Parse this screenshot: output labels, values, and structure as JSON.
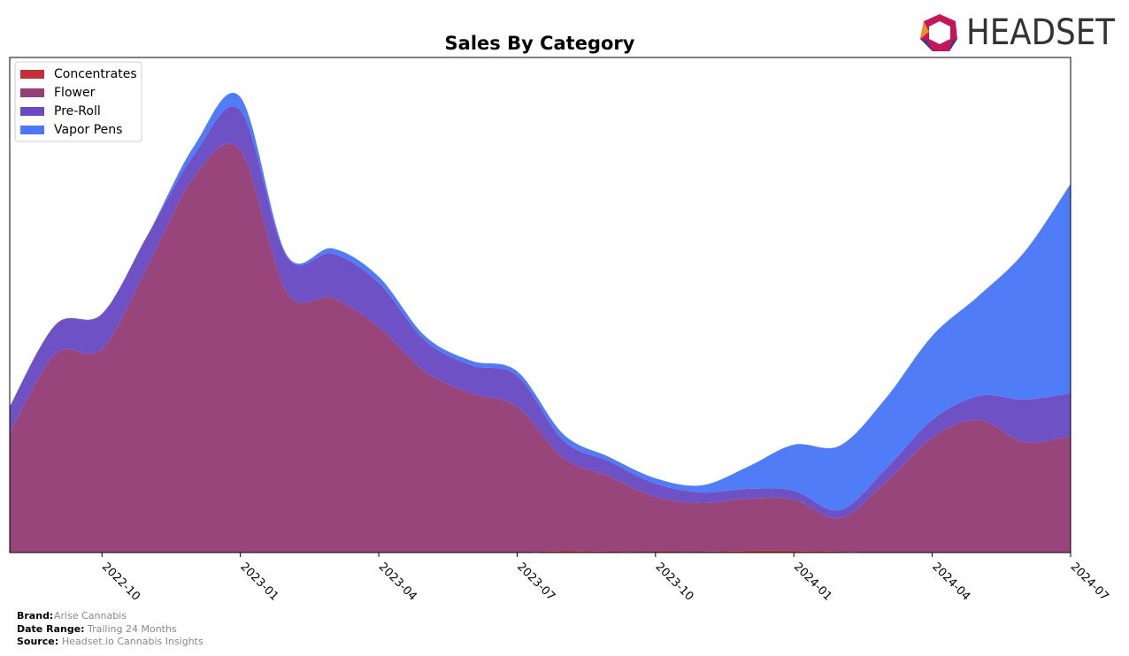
{
  "logo": "HEADSET",
  "chart_data": {
    "type": "stacked-area",
    "title": "Sales By Category",
    "x": [
      "2022-08",
      "2022-09",
      "2022-10",
      "2022-11",
      "2022-12",
      "2023-01",
      "2023-02",
      "2023-03",
      "2023-04",
      "2023-05",
      "2023-06",
      "2023-07",
      "2023-08",
      "2023-09",
      "2023-10",
      "2023-11",
      "2023-12",
      "2024-01",
      "2024-02",
      "2024-03",
      "2024-04",
      "2024-05",
      "2024-06",
      "2024-07"
    ],
    "xticks": [
      "2022-10",
      "2023-01",
      "2023-04",
      "2023-07",
      "2023-10",
      "2024-01",
      "2024-04",
      "2024-07"
    ],
    "legend": "upper left",
    "series": [
      {
        "name": "Concentrates",
        "color": "#c0303a",
        "values": [
          0,
          0,
          0,
          0,
          0,
          0,
          0,
          0,
          0,
          0,
          0,
          0,
          2,
          1,
          1,
          1,
          2,
          2,
          1,
          0,
          0,
          0,
          0,
          0
        ]
      },
      {
        "name": "Flower",
        "color": "#943f76",
        "values": [
          135,
          225,
          230,
          325,
          425,
          455,
          295,
          288,
          255,
          205,
          180,
          165,
          105,
          85,
          62,
          55,
          59,
          58,
          38,
          80,
          130,
          150,
          125,
          132
        ]
      },
      {
        "name": "Pre-Roll",
        "color": "#6a4bc4",
        "values": [
          30,
          33,
          40,
          35,
          25,
          45,
          40,
          50,
          50,
          35,
          32,
          35,
          20,
          17,
          15,
          12,
          11,
          10,
          9,
          15,
          20,
          27,
          48,
          48
        ]
      },
      {
        "name": "Vapor Pens",
        "color": "#4a78f8",
        "values": [
          0,
          0,
          0,
          0,
          10,
          15,
          2,
          6,
          7,
          5,
          5,
          5,
          7,
          5,
          6,
          8,
          25,
          52,
          73,
          80,
          95,
          113,
          167,
          237
        ]
      }
    ]
  },
  "footer": {
    "brand_label": "Brand:",
    "brand": "Arise Cannabis",
    "range_label": "Date Range:",
    "range": "Trailing 24 Months",
    "source_label": "Source:",
    "source": "Headset.io Cannabis Insights"
  }
}
